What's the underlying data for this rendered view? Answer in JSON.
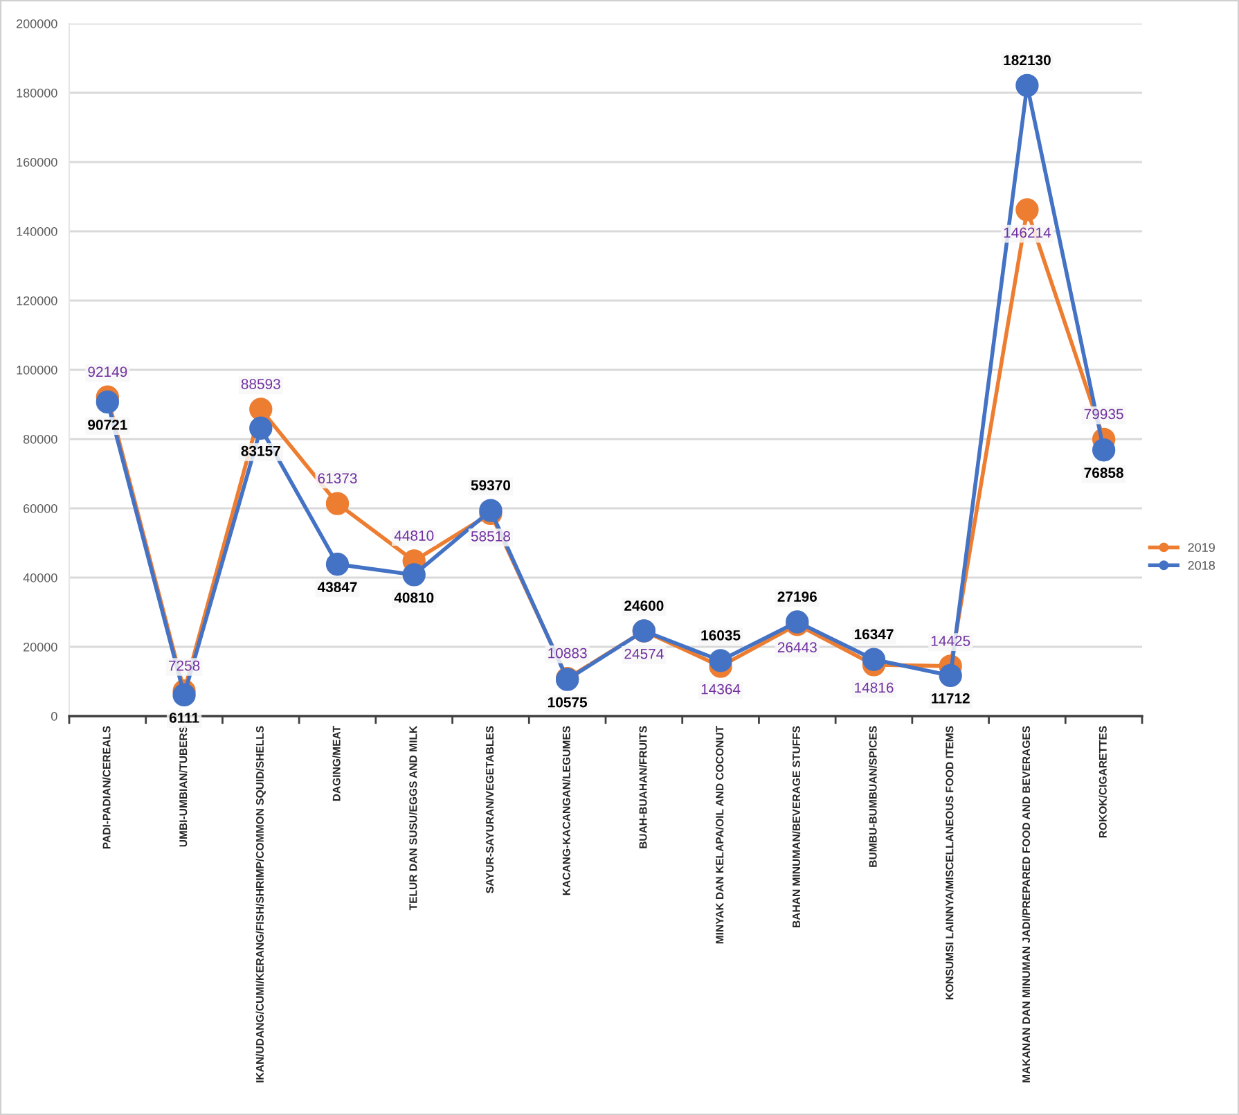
{
  "chart_data": {
    "type": "line",
    "categories": [
      "PADI-PADIAN/CEREALS",
      "UMBI-UMBIAN/TUBERS",
      "IKAN/UDANG/CUMI/KERANG/FISH/SHRIMP/COMMON SQUID/SHELLS",
      "DAGING/MEAT",
      "TELUR DAN SUSU/EGGS AND MILK",
      "SAYUR-SAYURAN/VEGETABLES",
      "KACANG-KACANGAN/LEGUMES",
      "BUAH-BUAHAN/FRUITS",
      "MINYAK DAN KELAPA/OIL AND COCONUT",
      "BAHAN MINUMAN/BEVERAGE STUFFS",
      "BUMBU-BUMBUAN/SPICES",
      "KONSUMSI LAINNYA/MISCELLANEOUS FOOD ITEMS",
      "MAKANAN DAN MINUMAN JADI/PREPARED FOOD AND BEVERAGES",
      "ROKOK/CIGARETTES"
    ],
    "series": [
      {
        "name": "2019",
        "color": "#ed7d31",
        "values": [
          92149,
          7258,
          88593,
          61373,
          44810,
          58518,
          10883,
          24574,
          14364,
          26443,
          14816,
          14425,
          146214,
          79935
        ]
      },
      {
        "name": "2018",
        "color": "#4472c4",
        "values": [
          90721,
          6111,
          83157,
          43847,
          40810,
          59370,
          10575,
          24600,
          16035,
          27196,
          16347,
          11712,
          182130,
          76858
        ]
      }
    ],
    "ylim": [
      0,
      200000
    ],
    "yticks": [
      0,
      20000,
      40000,
      60000,
      80000,
      100000,
      120000,
      140000,
      160000,
      180000,
      200000
    ],
    "grid": "y",
    "legend": "right",
    "marker": "circle",
    "line_style": "solid",
    "data_labels": true
  }
}
